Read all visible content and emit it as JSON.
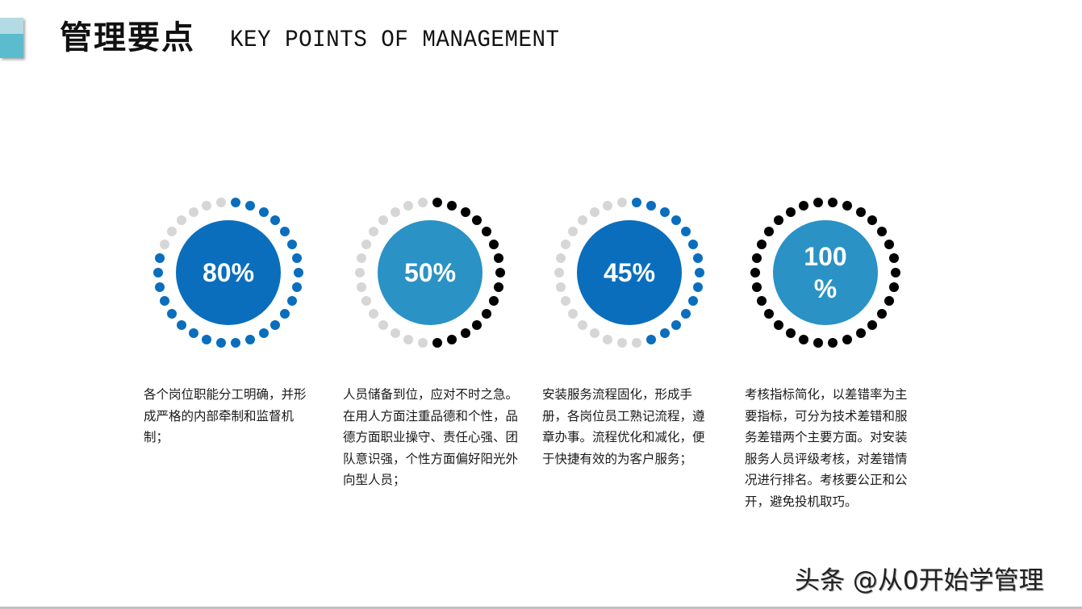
{
  "header": {
    "title_cn": "管理要点",
    "title_en": "KEY POINTS OF MANAGEMENT",
    "accent_colors": {
      "top": "#b4dbe4",
      "bottom": "#5bbccd"
    }
  },
  "chart_data": {
    "type": "pie",
    "title": "管理要点 KEY POINTS OF MANAGEMENT",
    "categories": [
      "岗位职能分工",
      "人员储备",
      "流程固化",
      "考核指标"
    ],
    "values": [
      80,
      50,
      45,
      100
    ],
    "unit": "%",
    "style": "dotted progress rings"
  },
  "items": [
    {
      "value": 80,
      "label": "80%",
      "core_color": "#0a6ebd",
      "dot_color": "#0a6ebd",
      "track_color": "#d6d6d6",
      "description": "各个岗位职能分工明确，并形成严格的内部牵制和监督机制；"
    },
    {
      "value": 50,
      "label": "50%",
      "core_color": "#2a92c4",
      "dot_color": "#000000",
      "track_color": "#d6d6d6",
      "description": "人员储备到位，应对不时之急。在用人方面注重品德和个性，品德方面职业操守、责任心强、团队意识强，个性方面偏好阳光外向型人员；"
    },
    {
      "value": 45,
      "label": "45%",
      "core_color": "#0a6ebd",
      "dot_color": "#0a6ebd",
      "track_color": "#d6d6d6",
      "description": "安装服务流程固化，形成手册，各岗位员工熟记流程，遵章办事。流程优化和减化，便于快捷有效的为客户服务；"
    },
    {
      "value": 100,
      "label": "100 %",
      "label_line1": "100",
      "label_line2": "%",
      "core_color": "#2a92c4",
      "dot_color": "#000000",
      "track_color": "#d6d6d6",
      "description": "考核指标简化，以差错率为主要指标，可分为技术差错和服务差错两个主要方面。对安装服务人员评级考核，对差错情况进行排名。考核要公正和公开，避免投机取巧。"
    }
  ],
  "watermark": "头条 @从0开始学管理"
}
